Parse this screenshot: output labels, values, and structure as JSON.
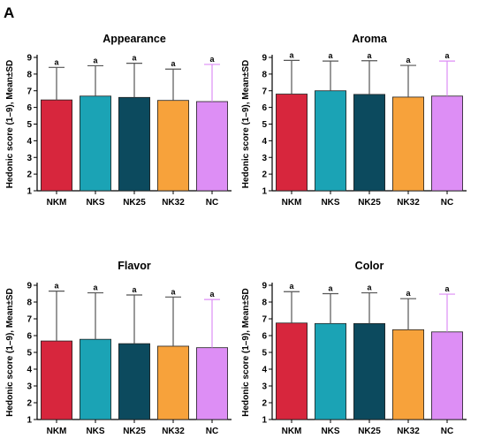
{
  "panel_label": "A",
  "chart_data": [
    {
      "type": "bar",
      "title": "Appearance",
      "ylabel": "Hedonic score (1–9), Mean±SD",
      "ylim": [
        1,
        9
      ],
      "yticks": [
        1,
        2,
        3,
        4,
        5,
        6,
        7,
        8,
        9
      ],
      "categories": [
        "NKM",
        "NKS",
        "NK25",
        "NK32",
        "NC"
      ],
      "values": [
        6.45,
        6.68,
        6.6,
        6.42,
        6.35
      ],
      "errors": [
        1.95,
        1.82,
        2.05,
        1.88,
        2.23
      ],
      "significance": [
        "a",
        "a",
        "a",
        "a",
        "a"
      ],
      "colors": [
        "#d7263d",
        "#1ba3b5",
        "#0c4a5e",
        "#f7a23b",
        "#dd8ef5"
      ],
      "error_colors": [
        "#555555",
        "#555555",
        "#555555",
        "#555555",
        "#dd8ef5"
      ]
    },
    {
      "type": "bar",
      "title": "Aroma",
      "ylabel": "Hedonic score (1–9), Mean±SD",
      "ylim": [
        1,
        9
      ],
      "yticks": [
        1,
        2,
        3,
        4,
        5,
        6,
        7,
        8,
        9
      ],
      "categories": [
        "NKM",
        "NKS",
        "NK25",
        "NK32",
        "NC"
      ],
      "values": [
        6.8,
        7.0,
        6.78,
        6.62,
        6.68
      ],
      "errors": [
        2.02,
        1.78,
        2.02,
        1.9,
        2.1
      ],
      "significance": [
        "a",
        "a",
        "a",
        "a",
        "a"
      ],
      "colors": [
        "#d7263d",
        "#1ba3b5",
        "#0c4a5e",
        "#f7a23b",
        "#dd8ef5"
      ],
      "error_colors": [
        "#555555",
        "#555555",
        "#555555",
        "#555555",
        "#dd8ef5"
      ]
    },
    {
      "type": "bar",
      "title": "Flavor",
      "ylabel": "Hedonic score (1–9), Mean±SD",
      "ylim": [
        1,
        9
      ],
      "yticks": [
        1,
        2,
        3,
        4,
        5,
        6,
        7,
        8,
        9
      ],
      "categories": [
        "NKM",
        "NKS",
        "NK25",
        "NK32",
        "NC"
      ],
      "values": [
        5.68,
        5.78,
        5.52,
        5.37,
        5.28
      ],
      "errors": [
        2.97,
        2.77,
        2.9,
        2.93,
        2.87
      ],
      "significance": [
        "a",
        "a",
        "a",
        "a",
        "a"
      ],
      "colors": [
        "#d7263d",
        "#1ba3b5",
        "#0c4a5e",
        "#f7a23b",
        "#dd8ef5"
      ],
      "error_colors": [
        "#555555",
        "#555555",
        "#555555",
        "#555555",
        "#dd8ef5"
      ]
    },
    {
      "type": "bar",
      "title": "Color",
      "ylabel": "Hedonic score (1–9), Mean±SD",
      "ylim": [
        1,
        9
      ],
      "yticks": [
        1,
        2,
        3,
        4,
        5,
        6,
        7,
        8,
        9
      ],
      "categories": [
        "NKM",
        "NKS",
        "NK25",
        "NK32",
        "NC"
      ],
      "values": [
        6.75,
        6.72,
        6.72,
        6.35,
        6.22
      ],
      "errors": [
        1.87,
        1.78,
        1.83,
        1.85,
        2.25
      ],
      "significance": [
        "a",
        "a",
        "a",
        "a",
        "a"
      ],
      "colors": [
        "#d7263d",
        "#1ba3b5",
        "#0c4a5e",
        "#f7a23b",
        "#dd8ef5"
      ],
      "error_colors": [
        "#555555",
        "#555555",
        "#555555",
        "#555555",
        "#dd8ef5"
      ]
    }
  ]
}
